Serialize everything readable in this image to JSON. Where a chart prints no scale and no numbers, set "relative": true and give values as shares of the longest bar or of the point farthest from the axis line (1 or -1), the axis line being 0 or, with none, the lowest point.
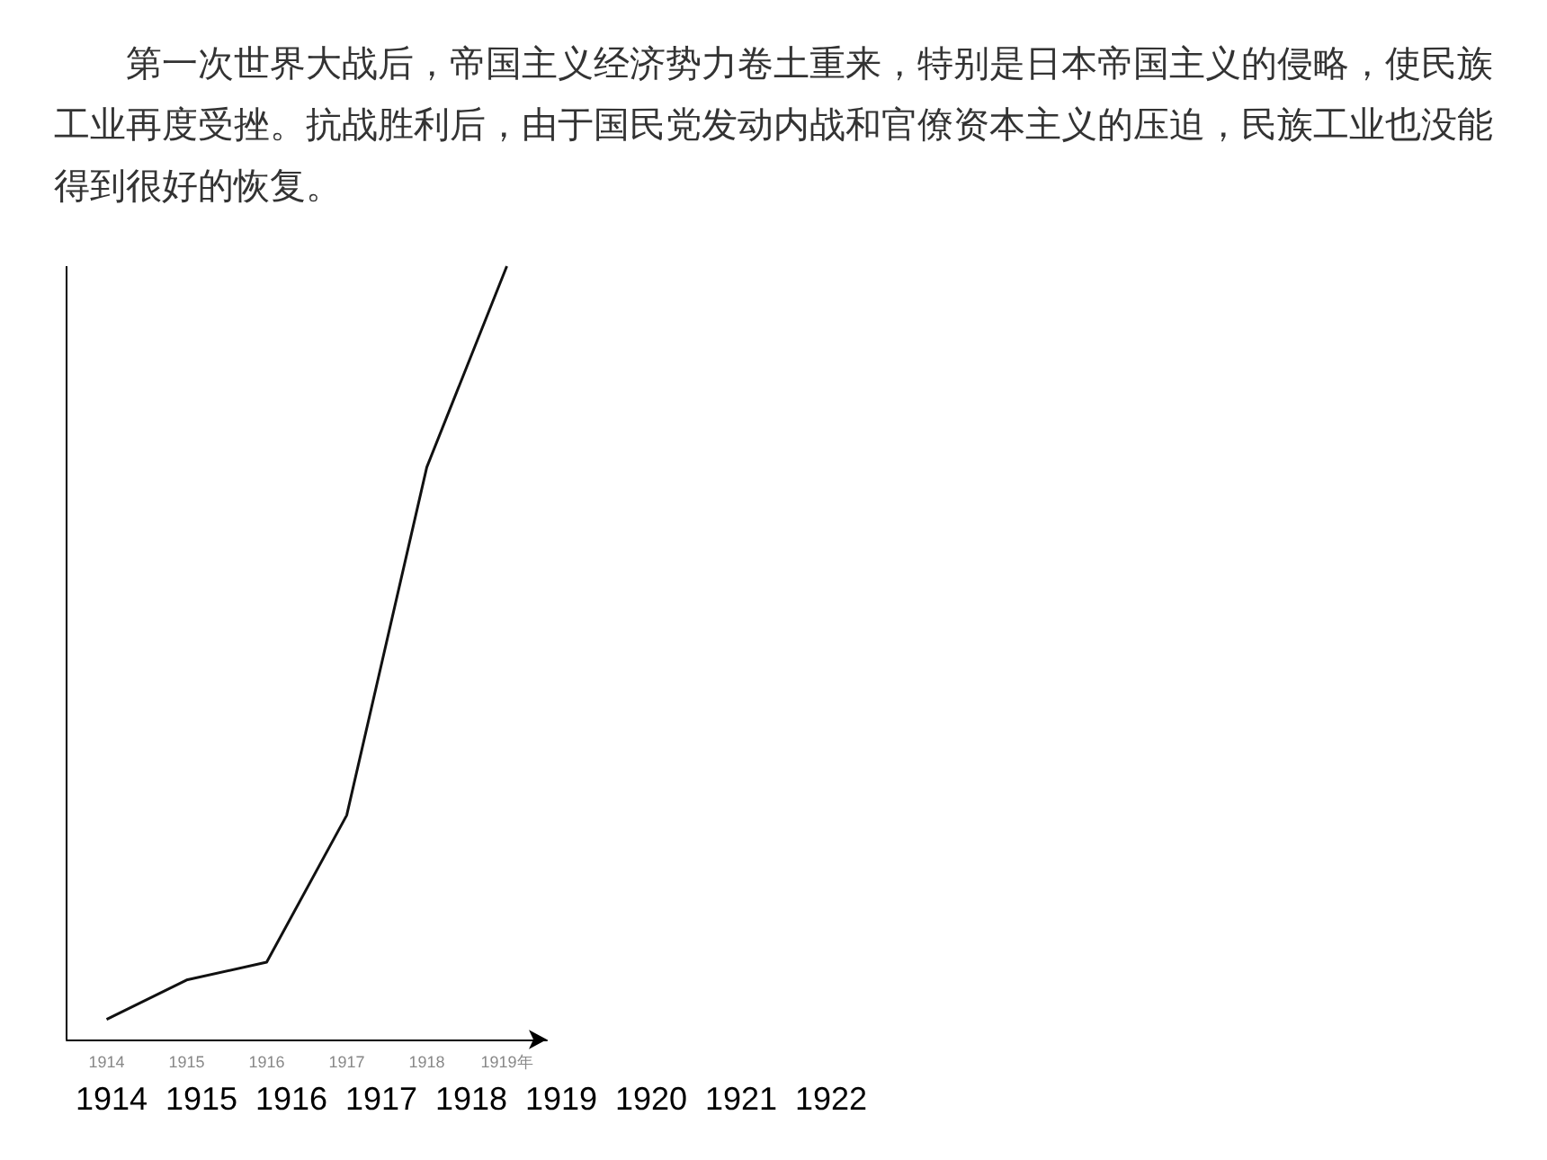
{
  "chart_data": {
    "type": "line",
    "title": "第一次世界大战后，帝国主义经济势力卷土重来，特别是日本帝国主义的侵略，使民族工业再度受挫。抗战胜利后，由于国民党发动内战和官僚资本主义的压迫，民族工业也没能得到很好的恢复。",
    "categories": [
      "1914",
      "1915",
      "1916",
      "1917",
      "1918",
      "1919年"
    ],
    "series": [
      {
        "color": "#111111",
        "values": [
          0.026,
          0.077,
          0.1,
          0.29,
          0.74,
          1.0
        ]
      }
    ],
    "relative": true,
    "grid": false,
    "marker": "none",
    "line_style": "solid",
    "annotations": [
      "1914",
      "1915",
      "1916",
      "1917",
      "1918",
      "1919",
      "1920",
      "1921",
      "1922"
    ]
  }
}
